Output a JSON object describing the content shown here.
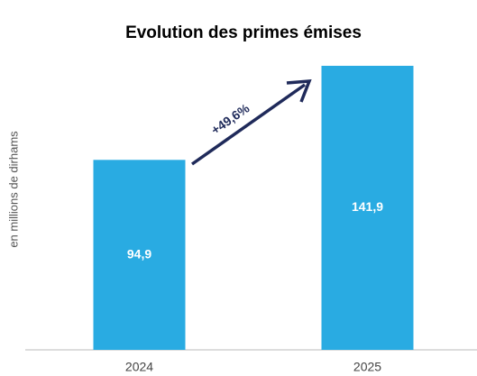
{
  "chart_data": {
    "type": "bar",
    "title": "Evolution des primes émises",
    "y_label": "en millions de dirhams",
    "categories": [
      "2024",
      "2025"
    ],
    "values": [
      94.9,
      141.9
    ],
    "value_labels": [
      "94,9",
      "141,9"
    ],
    "color": "#29abe2",
    "ylim": [
      0,
      150
    ],
    "annotation": "+49,6%"
  }
}
